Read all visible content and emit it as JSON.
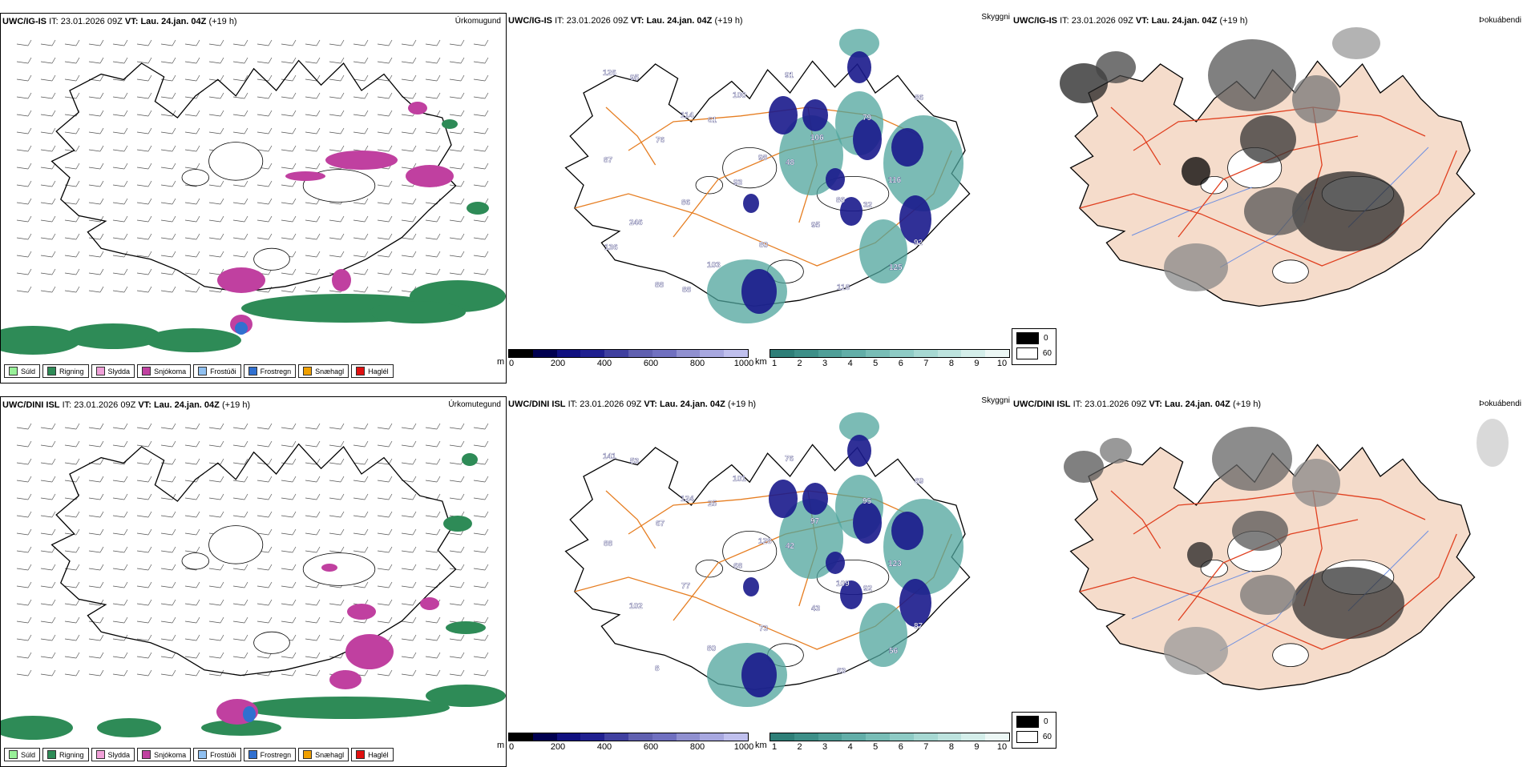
{
  "rows": [
    {
      "model": "UWC/IG-IS",
      "it_label": "IT:",
      "it_value": "23.01.2026 09Z",
      "vt_label": "VT:",
      "vt_value": "Lau. 24.jan. 04Z",
      "lead": "(+19 h)",
      "precip_title": "Úrkomugund",
      "ceiling_title": "Skyggni",
      "fog_title": "Þokuábendi",
      "ceiling_labels": [
        "126",
        "114",
        "98",
        "86",
        "92",
        "88",
        "100",
        "106",
        "116",
        "246",
        "103",
        "91",
        "79",
        "87",
        "86",
        "80",
        "118",
        "86",
        "76",
        "93",
        "95",
        "125",
        "95",
        "61",
        "48",
        "32",
        "136",
        "88"
      ]
    },
    {
      "model": "UWC/DINI ISL",
      "it_label": "IT:",
      "it_value": "23.01.2026 09Z",
      "vt_label": "VT:",
      "vt_value": "Lau. 24.jan. 04Z",
      "lead": "(+19 h)",
      "precip_title": "Úrkomutegund",
      "ceiling_title": "Skyggni",
      "fog_title": "Þokuábendi",
      "ceiling_labels": [
        "141",
        "124",
        "128",
        "109",
        "87",
        "8",
        "101",
        "97",
        "123",
        "102",
        "80",
        "76",
        "95",
        "88",
        "77",
        "73",
        "63",
        "69",
        "67",
        "68",
        "43",
        "56",
        "53",
        "25",
        "42",
        "92"
      ]
    }
  ],
  "precip_legend": [
    {
      "label": "Súld",
      "color": "#98f098"
    },
    {
      "label": "Rigning",
      "color": "#2e8b57"
    },
    {
      "label": "Slydda",
      "color": "#f0a0d8"
    },
    {
      "label": "Snjókoma",
      "color": "#c040a0"
    },
    {
      "label": "Frostúði",
      "color": "#90c0f0"
    },
    {
      "label": "Frostregn",
      "color": "#3070d0"
    },
    {
      "label": "Snæhagl",
      "color": "#f0a000"
    },
    {
      "label": "Haglél",
      "color": "#e01010"
    }
  ],
  "height_bar": {
    "unit": "m",
    "ticks": [
      "0",
      "200",
      "400",
      "600",
      "800",
      "1000"
    ],
    "colors": [
      "#000000",
      "#000050",
      "#101080",
      "#202090",
      "#4040a0",
      "#6060b0",
      "#7070c0",
      "#9090d0",
      "#a8a8e0",
      "#c0c0ee"
    ]
  },
  "vis_bar": {
    "unit": "km",
    "ticks": [
      "1",
      "2",
      "3",
      "4",
      "5",
      "6",
      "7",
      "8",
      "9",
      "10"
    ],
    "colors": [
      "#2e7f78",
      "#3d8f88",
      "#4f9f98",
      "#62aea8",
      "#78bdb6",
      "#8ecbc5",
      "#a6d8d2",
      "#bde3de",
      "#d4eeea",
      "#ecf7f5"
    ]
  },
  "fog_legend": [
    {
      "label": "0",
      "color": "#000000"
    },
    {
      "label": "60",
      "color": "#ffffff"
    }
  ],
  "colors": {
    "land_fog": "#f5dccb",
    "road": "#e67e22",
    "road_red": "#e04020",
    "river": "#7090e0",
    "coast": "#000000",
    "snow": "#c040a0",
    "rain": "#2e8b57"
  }
}
